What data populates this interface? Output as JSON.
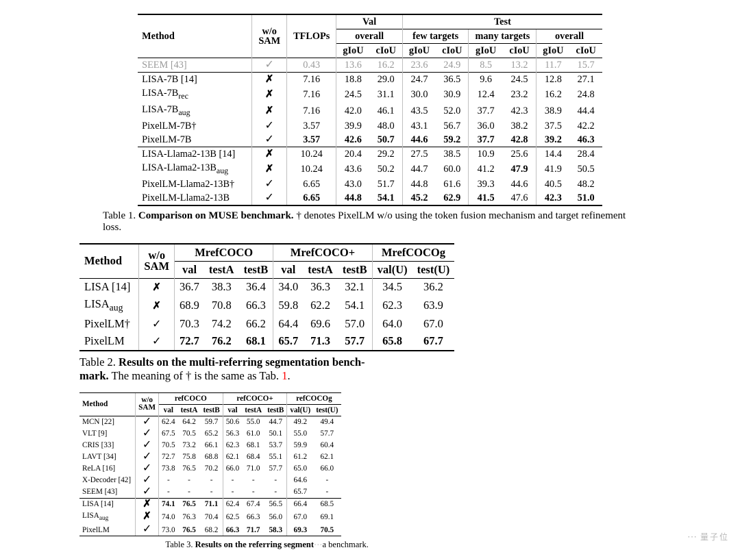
{
  "palette": {
    "text": "#000000",
    "muted": "#9a9a9a",
    "rule": "#000000",
    "vsep": "#c0c0c0",
    "red": "#ff0000",
    "bg": "#ffffff"
  },
  "glyphs": {
    "check": "✓",
    "cross": "✗",
    "dagger": "†",
    "wechat": "⋯"
  },
  "table1": {
    "headers": {
      "method": "Method",
      "wosam": "w/o\nSAM",
      "tflops": "TFLOPs",
      "val": "Val",
      "test": "Test",
      "overall": "overall",
      "few": "few targets",
      "many": "many targets",
      "giou": "gIoU",
      "ciou": "cIoU"
    },
    "rows": [
      {
        "name": "SEEM [43]",
        "sam": "✓",
        "tflops": "0.43",
        "val": [
          "13.6",
          "16.2"
        ],
        "few": [
          "23.6",
          "24.9"
        ],
        "many": [
          "8.5",
          "13.2"
        ],
        "overall": [
          "11.7",
          "15.7"
        ],
        "muted": true
      },
      {
        "name": "LISA-7B [14]",
        "sam": "✗",
        "tflops": "7.16",
        "val": [
          "18.8",
          "29.0"
        ],
        "few": [
          "24.7",
          "36.5"
        ],
        "many": [
          "9.6",
          "24.5"
        ],
        "overall": [
          "12.8",
          "27.1"
        ]
      },
      {
        "name": "LISA-7B<sub>rec</sub>",
        "sam": "✗",
        "tflops": "7.16",
        "val": [
          "24.5",
          "31.1"
        ],
        "few": [
          "30.0",
          "30.9"
        ],
        "many": [
          "12.4",
          "23.2"
        ],
        "overall": [
          "16.2",
          "24.8"
        ]
      },
      {
        "name": "LISA-7B<sub>aug</sub>",
        "sam": "✗",
        "tflops": "7.16",
        "val": [
          "42.0",
          "46.1"
        ],
        "few": [
          "43.5",
          "52.0"
        ],
        "many": [
          "37.7",
          "42.3"
        ],
        "overall": [
          "38.9",
          "44.4"
        ]
      },
      {
        "name": "PixelLM-7B†",
        "sam": "✓",
        "tflops": "3.57",
        "val": [
          "39.9",
          "48.0"
        ],
        "few": [
          "43.1",
          "56.7"
        ],
        "many": [
          "36.0",
          "38.2"
        ],
        "overall": [
          "37.5",
          "42.2"
        ]
      },
      {
        "name": "PixelLM-7B",
        "sam": "✓",
        "tflops": "<b>3.57</b>",
        "val": [
          "<b>42.6</b>",
          "<b>50.7</b>"
        ],
        "few": [
          "<b>44.6</b>",
          "<b>59.2</b>"
        ],
        "many": [
          "<b>37.7</b>",
          "<b>42.8</b>"
        ],
        "overall": [
          "<b>39.2</b>",
          "<b>46.3</b>"
        ]
      },
      {
        "sep": true
      },
      {
        "name": "LISA-Llama2-13B [14]",
        "sam": "✗",
        "tflops": "10.24",
        "val": [
          "20.4",
          "29.2"
        ],
        "few": [
          "27.5",
          "38.5"
        ],
        "many": [
          "10.9",
          "25.6"
        ],
        "overall": [
          "14.4",
          "28.4"
        ]
      },
      {
        "name": "LISA-Llama2-13B<sub>aug</sub>",
        "sam": "✗",
        "tflops": "10.24",
        "val": [
          "43.6",
          "50.2"
        ],
        "few": [
          "44.7",
          "60.0"
        ],
        "many": [
          "41.2",
          "<b>47.9</b>"
        ],
        "overall": [
          "41.9",
          "50.5"
        ]
      },
      {
        "name": "PixelLM-Llama2-13B†",
        "sam": "✓",
        "tflops": "6.65",
        "val": [
          "43.0",
          "51.7"
        ],
        "few": [
          "44.8",
          "61.6"
        ],
        "many": [
          "39.3",
          "44.6"
        ],
        "overall": [
          "40.5",
          "48.2"
        ]
      },
      {
        "name": "PixelLM-Llama2-13B",
        "sam": "✓",
        "tflops": "<b>6.65</b>",
        "val": [
          "<b>44.8</b>",
          "<b>54.1</b>"
        ],
        "few": [
          "<b>45.2</b>",
          "<b>62.9</b>"
        ],
        "many": [
          "<b>41.5</b>",
          "47.6"
        ],
        "overall": [
          "<b>42.3</b>",
          "<b>51.0</b>"
        ]
      }
    ],
    "caption_pre": "Table 1. ",
    "caption_bold": "Comparison on MUSE benchmark.",
    "caption_rest": " † denotes PixelLM w/o using the token fusion mechanism and target refinement loss."
  },
  "table2": {
    "headers": {
      "method": "Method",
      "wosam": "w/o\nSAM",
      "a": "MrefCOCO",
      "b": "MrefCOCO+",
      "c": "MrefCOCOg",
      "val": "val",
      "ta": "testA",
      "tb": "testB",
      "vu": "val(U)",
      "tu": "test(U)"
    },
    "rows": [
      {
        "name": "LISA [14]",
        "sam": "✗",
        "a": [
          "36.7",
          "38.3",
          "36.4"
        ],
        "b": [
          "34.0",
          "36.3",
          "32.1"
        ],
        "c": [
          "34.5",
          "36.2"
        ]
      },
      {
        "name": "LISA<sub>aug</sub>",
        "sam": "✗",
        "a": [
          "68.9",
          "70.8",
          "66.3"
        ],
        "b": [
          "59.8",
          "62.2",
          "54.1"
        ],
        "c": [
          "62.3",
          "63.9"
        ]
      },
      {
        "name": "PixelLM†",
        "sam": "✓",
        "a": [
          "70.3",
          "74.2",
          "66.2"
        ],
        "b": [
          "64.4",
          "69.6",
          "57.0"
        ],
        "c": [
          "64.0",
          "67.0"
        ]
      },
      {
        "name": "PixelLM",
        "sam": "✓",
        "a": [
          "<b>72.7</b>",
          "<b>76.2</b>",
          "<b>68.1</b>"
        ],
        "b": [
          "<b>65.7</b>",
          "<b>71.3</b>",
          "<b>57.7</b>"
        ],
        "c": [
          "<b>65.8</b>",
          "<b>67.7</b>"
        ]
      }
    ],
    "caption_pre": "Table 2. ",
    "caption_bold": "Results on the multi-referring segmentation bench-\nmark.",
    "caption_rest": " The meaning of † is the same as Tab. ",
    "caption_ref": "1",
    "caption_dot": "."
  },
  "table3": {
    "headers": {
      "method": "Method",
      "wosam": "w/o\nSAM",
      "a": "refCOCO",
      "b": "refCOCO+",
      "c": "refCOCOg",
      "val": "val",
      "ta": "testA",
      "tb": "testB",
      "vu": "val(U)",
      "tu": "test(U)"
    },
    "rows": [
      {
        "name": "MCN [22]",
        "sam": "✓",
        "a": [
          "62.4",
          "64.2",
          "59.7"
        ],
        "b": [
          "50.6",
          "55.0",
          "44.7"
        ],
        "c": [
          "49.2",
          "49.4"
        ]
      },
      {
        "name": "VLT [9]",
        "sam": "✓",
        "a": [
          "67.5",
          "70.5",
          "65.2"
        ],
        "b": [
          "56.3",
          "61.0",
          "50.1"
        ],
        "c": [
          "55.0",
          "57.7"
        ]
      },
      {
        "name": "CRIS [33]",
        "sam": "✓",
        "a": [
          "70.5",
          "73.2",
          "66.1"
        ],
        "b": [
          "62.3",
          "68.1",
          "53.7"
        ],
        "c": [
          "59.9",
          "60.4"
        ]
      },
      {
        "name": "LAVT [34]",
        "sam": "✓",
        "a": [
          "72.7",
          "75.8",
          "68.8"
        ],
        "b": [
          "62.1",
          "68.4",
          "55.1"
        ],
        "c": [
          "61.2",
          "62.1"
        ]
      },
      {
        "name": "ReLA [16]",
        "sam": "✓",
        "a": [
          "73.8",
          "76.5",
          "70.2"
        ],
        "b": [
          "66.0",
          "71.0",
          "57.7"
        ],
        "c": [
          "65.0",
          "66.0"
        ]
      },
      {
        "name": "X-Decoder [42]",
        "sam": "✓",
        "a": [
          "-",
          "-",
          "-"
        ],
        "b": [
          "-",
          "-",
          "-"
        ],
        "c": [
          "64.6",
          "-"
        ]
      },
      {
        "name": "SEEM [43]",
        "sam": "✓",
        "a": [
          "-",
          "-",
          "-"
        ],
        "b": [
          "-",
          "-",
          "-"
        ],
        "c": [
          "65.7",
          "-"
        ]
      },
      {
        "sep": true
      },
      {
        "name": "LISA [14]",
        "sam": "✗",
        "a": [
          "<b>74.1</b>",
          "<b>76.5</b>",
          "<b>71.1</b>"
        ],
        "b": [
          "62.4",
          "67.4",
          "56.5"
        ],
        "c": [
          "66.4",
          "68.5"
        ]
      },
      {
        "name": "LISA<sub>aug</sub>",
        "sam": "✗",
        "a": [
          "74.0",
          "76.3",
          "70.4"
        ],
        "b": [
          "62.5",
          "66.3",
          "56.0"
        ],
        "c": [
          "67.0",
          "69.1"
        ]
      },
      {
        "name": "PixelLM",
        "sam": "✓",
        "a": [
          "73.0",
          "<b>76.5</b>",
          "68.2"
        ],
        "b": [
          "<b>66.3</b>",
          "<b>71.7</b>",
          "<b>58.3</b>"
        ],
        "c": [
          "<b>69.3</b>",
          "<b>70.5</b>"
        ]
      }
    ],
    "caption": "Table 3. ",
    "caption_bold": "Results on the referring segment",
    "caption_cut": "a benchmark."
  },
  "watermark": "量子位"
}
